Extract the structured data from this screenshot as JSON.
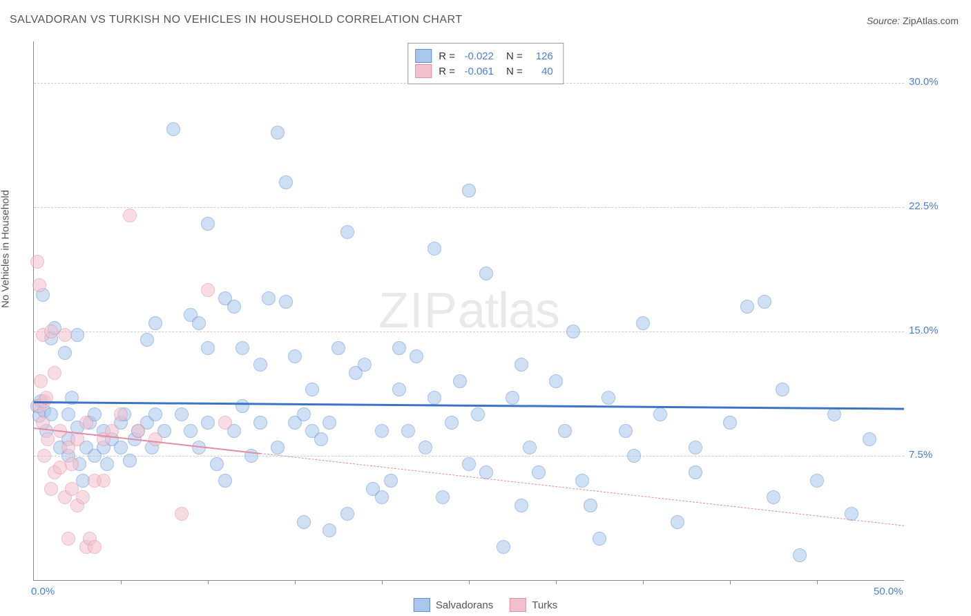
{
  "title": "SALVADORAN VS TURKISH NO VEHICLES IN HOUSEHOLD CORRELATION CHART",
  "source_label": "Source:",
  "source_value": "ZipAtlas.com",
  "ylabel": "No Vehicles in Household",
  "watermark_1": "ZIP",
  "watermark_2": "atlas",
  "chart": {
    "type": "scatter",
    "background_color": "#ffffff",
    "grid_color": "#cccccc",
    "grid_dash": "4,4",
    "axis_color": "#888888",
    "xlim": [
      0,
      50
    ],
    "ylim": [
      0,
      32.5
    ],
    "x_tick_step": 5,
    "x_labels": [
      {
        "v": 0,
        "t": "0.0%"
      },
      {
        "v": 50,
        "t": "50.0%"
      }
    ],
    "y_ticks": [
      {
        "v": 7.5,
        "t": "7.5%"
      },
      {
        "v": 15.0,
        "t": "15.0%"
      },
      {
        "v": 22.5,
        "t": "22.5%"
      },
      {
        "v": 30.0,
        "t": "30.0%"
      }
    ],
    "marker_radius": 9,
    "marker_opacity": 0.55,
    "tick_label_color": "#4a7fd8",
    "tick_label_fontsize": 15,
    "title_fontsize": 16,
    "title_color": "#555555"
  },
  "series": [
    {
      "name": "Salvadorans",
      "fill": "#a9c6ec",
      "stroke": "#5b8fd6",
      "r_label": "R =",
      "r_value": "-0.022",
      "n_label": "N =",
      "n_value": "126",
      "trend": {
        "y_at_x0": 10.8,
        "y_at_x50": 10.4,
        "color": "#3b74c6",
        "width": 3,
        "solid_until_x": 50,
        "dash": null
      },
      "points": [
        [
          0.2,
          10.5
        ],
        [
          0.3,
          9.9
        ],
        [
          0.4,
          10.8
        ],
        [
          0.5,
          17.2
        ],
        [
          0.6,
          10.2
        ],
        [
          0.7,
          9.0
        ],
        [
          1.0,
          14.6
        ],
        [
          1.0,
          10.0
        ],
        [
          1.2,
          15.2
        ],
        [
          1.5,
          8.0
        ],
        [
          1.8,
          13.7
        ],
        [
          2.0,
          7.5
        ],
        [
          2.0,
          8.5
        ],
        [
          2.0,
          10.0
        ],
        [
          2.2,
          11.0
        ],
        [
          2.5,
          14.8
        ],
        [
          2.5,
          9.2
        ],
        [
          2.6,
          7.0
        ],
        [
          2.8,
          6.0
        ],
        [
          3.0,
          8.0
        ],
        [
          3.2,
          9.5
        ],
        [
          3.5,
          10.0
        ],
        [
          3.5,
          7.5
        ],
        [
          4.0,
          9.0
        ],
        [
          4.0,
          8.0
        ],
        [
          4.2,
          7.0
        ],
        [
          4.5,
          8.5
        ],
        [
          5.0,
          8.0
        ],
        [
          5.0,
          9.5
        ],
        [
          5.2,
          10.0
        ],
        [
          5.5,
          7.2
        ],
        [
          5.8,
          8.5
        ],
        [
          6.0,
          9.0
        ],
        [
          6.5,
          9.5
        ],
        [
          6.5,
          14.5
        ],
        [
          6.8,
          8.0
        ],
        [
          7.0,
          10.0
        ],
        [
          7.0,
          15.5
        ],
        [
          7.5,
          9.0
        ],
        [
          8.0,
          27.2
        ],
        [
          8.5,
          10.0
        ],
        [
          9.0,
          16.0
        ],
        [
          9.0,
          9.0
        ],
        [
          9.5,
          8.0
        ],
        [
          9.5,
          15.5
        ],
        [
          10.0,
          21.5
        ],
        [
          10.0,
          14.0
        ],
        [
          10.0,
          9.5
        ],
        [
          10.5,
          7.0
        ],
        [
          11.0,
          17.0
        ],
        [
          11.0,
          6.0
        ],
        [
          11.5,
          16.5
        ],
        [
          11.5,
          9.0
        ],
        [
          12.0,
          14.0
        ],
        [
          12.0,
          10.5
        ],
        [
          12.5,
          7.5
        ],
        [
          13.0,
          9.5
        ],
        [
          13.0,
          13.0
        ],
        [
          13.5,
          17.0
        ],
        [
          14.0,
          27.0
        ],
        [
          14.0,
          8.0
        ],
        [
          14.5,
          24.0
        ],
        [
          14.5,
          16.8
        ],
        [
          15.0,
          9.5
        ],
        [
          15.0,
          13.5
        ],
        [
          15.5,
          10.0
        ],
        [
          15.5,
          3.5
        ],
        [
          16.0,
          11.5
        ],
        [
          16.0,
          9.0
        ],
        [
          16.5,
          8.5
        ],
        [
          17.0,
          9.5
        ],
        [
          17.0,
          3.0
        ],
        [
          17.5,
          14.0
        ],
        [
          18.0,
          21.0
        ],
        [
          18.0,
          4.0
        ],
        [
          18.5,
          12.5
        ],
        [
          19.0,
          13.0
        ],
        [
          19.5,
          5.5
        ],
        [
          20.0,
          9.0
        ],
        [
          20.0,
          5.0
        ],
        [
          20.5,
          6.0
        ],
        [
          21.0,
          14.0
        ],
        [
          21.0,
          11.5
        ],
        [
          21.5,
          9.0
        ],
        [
          22.0,
          13.5
        ],
        [
          22.5,
          8.0
        ],
        [
          23.0,
          20.0
        ],
        [
          23.0,
          11.0
        ],
        [
          23.5,
          5.0
        ],
        [
          24.0,
          9.5
        ],
        [
          24.5,
          12.0
        ],
        [
          25.0,
          7.0
        ],
        [
          25.0,
          23.5
        ],
        [
          25.5,
          10.0
        ],
        [
          26.0,
          18.5
        ],
        [
          26.0,
          6.5
        ],
        [
          27.0,
          2.0
        ],
        [
          27.5,
          11.0
        ],
        [
          28.0,
          13.0
        ],
        [
          28.0,
          4.5
        ],
        [
          28.5,
          8.0
        ],
        [
          29.0,
          6.5
        ],
        [
          30.0,
          12.0
        ],
        [
          30.5,
          9.0
        ],
        [
          31.0,
          15.0
        ],
        [
          31.5,
          6.0
        ],
        [
          32.0,
          4.5
        ],
        [
          32.5,
          2.5
        ],
        [
          33.0,
          11.0
        ],
        [
          34.0,
          9.0
        ],
        [
          34.5,
          7.5
        ],
        [
          35.0,
          15.5
        ],
        [
          36.0,
          10.0
        ],
        [
          37.0,
          3.5
        ],
        [
          38.0,
          8.0
        ],
        [
          38.0,
          6.5
        ],
        [
          40.0,
          9.5
        ],
        [
          41.0,
          16.5
        ],
        [
          42.0,
          16.8
        ],
        [
          42.5,
          5.0
        ],
        [
          43.0,
          11.5
        ],
        [
          44.0,
          1.5
        ],
        [
          45.0,
          6.0
        ],
        [
          46.0,
          10.0
        ],
        [
          47.0,
          4.0
        ],
        [
          48.0,
          8.5
        ]
      ]
    },
    {
      "name": "Turks",
      "fill": "#f3c1cd",
      "stroke": "#e68ba4",
      "r_label": "R =",
      "r_value": "-0.061",
      "n_label": "N =",
      "n_value": "40",
      "trend": {
        "y_at_x0": 9.2,
        "y_at_x50": 3.3,
        "color": "#e68ba4",
        "width": 2,
        "solid_until_x": 13,
        "dash": "5,5"
      },
      "points": [
        [
          0.2,
          19.2
        ],
        [
          0.3,
          17.8
        ],
        [
          0.3,
          10.5
        ],
        [
          0.4,
          12.0
        ],
        [
          0.5,
          14.8
        ],
        [
          0.5,
          9.5
        ],
        [
          0.6,
          10.8
        ],
        [
          0.6,
          7.5
        ],
        [
          0.7,
          11.0
        ],
        [
          0.8,
          8.5
        ],
        [
          1.0,
          15.0
        ],
        [
          1.0,
          5.5
        ],
        [
          1.2,
          12.5
        ],
        [
          1.2,
          6.5
        ],
        [
          1.5,
          6.8
        ],
        [
          1.5,
          9.0
        ],
        [
          1.8,
          14.8
        ],
        [
          1.8,
          5.0
        ],
        [
          2.0,
          8.0
        ],
        [
          2.0,
          2.5
        ],
        [
          2.2,
          5.5
        ],
        [
          2.2,
          7.0
        ],
        [
          2.5,
          4.5
        ],
        [
          2.5,
          8.5
        ],
        [
          2.8,
          5.0
        ],
        [
          3.0,
          2.0
        ],
        [
          3.0,
          9.5
        ],
        [
          3.2,
          2.5
        ],
        [
          3.5,
          6.0
        ],
        [
          3.5,
          2.0
        ],
        [
          4.0,
          8.5
        ],
        [
          4.0,
          6.0
        ],
        [
          4.5,
          9.0
        ],
        [
          5.0,
          10.0
        ],
        [
          5.5,
          22.0
        ],
        [
          6.0,
          9.0
        ],
        [
          7.0,
          8.5
        ],
        [
          8.5,
          4.0
        ],
        [
          10.0,
          17.5
        ],
        [
          11.0,
          9.5
        ]
      ]
    }
  ],
  "bottom_legend": [
    {
      "name": "Salvadorans",
      "fill": "#a9c6ec",
      "stroke": "#5b8fd6"
    },
    {
      "name": "Turks",
      "fill": "#f3c1cd",
      "stroke": "#e68ba4"
    }
  ]
}
